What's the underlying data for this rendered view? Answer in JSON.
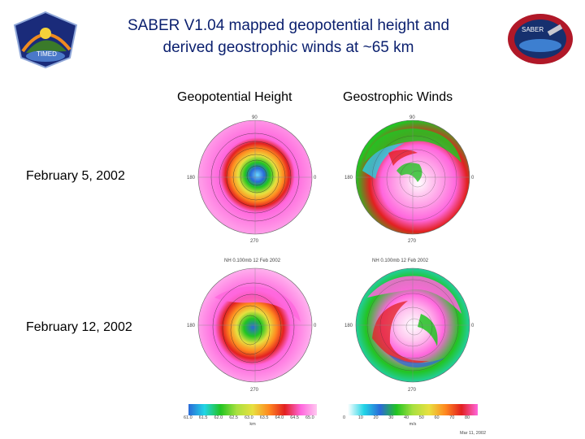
{
  "logos": {
    "left_text": "TIMED",
    "right_text": "SABER"
  },
  "title": {
    "line1": "SABER V1.04 mapped geopotential height and",
    "line2": "derived geostrophic winds at ~65 km"
  },
  "columns": {
    "left": "Geopotential Height",
    "right": "Geostrophic Winds"
  },
  "rows": {
    "row1": "February 5, 2002",
    "row2": "February 12, 2002"
  },
  "maps": {
    "angle_top": "90",
    "angle_left": "180",
    "angle_right": "0",
    "angle_bottom": "270",
    "caption": "NH 0.100mb 12 Feb 2002"
  },
  "colorbars": {
    "height": {
      "ticks": [
        "61.0",
        "61.5",
        "62.0",
        "62.5",
        "63.0",
        "63.5",
        "64.0",
        "64.5",
        "65.0"
      ],
      "unit": "km"
    },
    "winds": {
      "ticks": [
        "0",
        "10",
        "20",
        "30",
        "40",
        "50",
        "60",
        "70",
        "80"
      ],
      "unit": "m/s"
    },
    "footer": "Mar 11, 2002"
  },
  "colors": {
    "title": "#0a1f6e",
    "magenta": "#ff66dd",
    "pink": "#ffc8f0",
    "green": "#22c422",
    "cyan": "#22d5e6",
    "blue": "#2a6ad8",
    "yellow": "#e8e040",
    "red": "#e22020"
  }
}
